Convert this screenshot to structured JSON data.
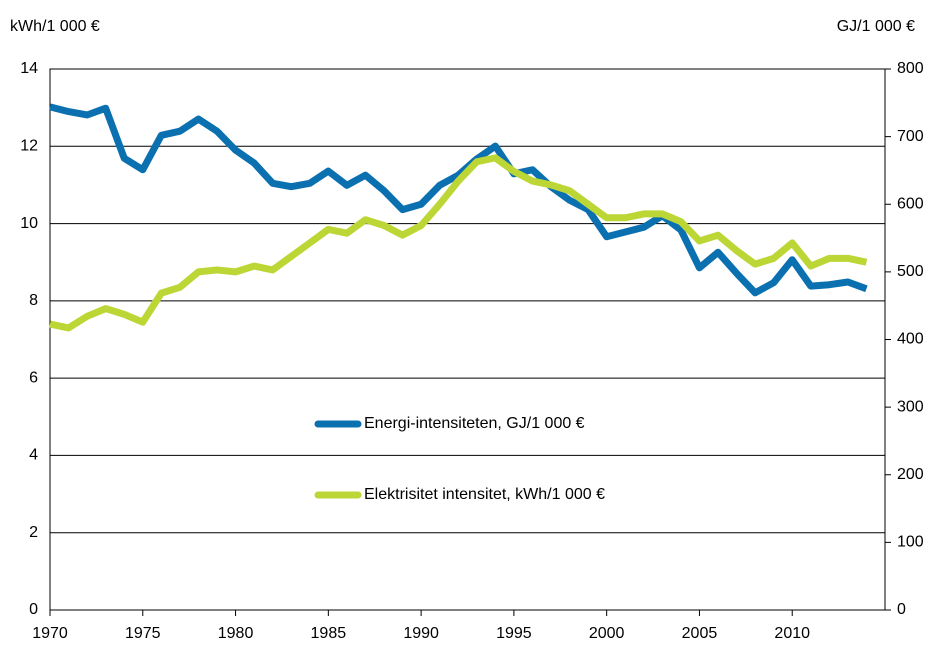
{
  "chart_data": {
    "type": "line",
    "y_label": "kWh/1 000 €",
    "y2_label": "GJ/1 000 €",
    "x": [
      1970,
      1971,
      1972,
      1973,
      1974,
      1975,
      1976,
      1977,
      1978,
      1979,
      1980,
      1981,
      1982,
      1983,
      1984,
      1985,
      1986,
      1987,
      1988,
      1989,
      1990,
      1991,
      1992,
      1993,
      1994,
      1995,
      1996,
      1997,
      1998,
      1999,
      2000,
      2001,
      2002,
      2003,
      2004,
      2005,
      2006,
      2007,
      2008,
      2009,
      2010,
      2011,
      2012,
      2013,
      2014
    ],
    "series": [
      {
        "name": "Energi-intensiteten, GJ/1 000 €",
        "color": "#0a70b0",
        "axis": "y2",
        "values": [
          744,
          737,
          732,
          742,
          668,
          651,
          702,
          708,
          726,
          708,
          680,
          661,
          631,
          626,
          631,
          649,
          628,
          643,
          620,
          592,
          600,
          628,
          643,
          667,
          686,
          645,
          651,
          626,
          606,
          592,
          552,
          559,
          566,
          583,
          562,
          506,
          529,
          498,
          469,
          484,
          518,
          479,
          481,
          485,
          475
        ]
      },
      {
        "name": "Elektrisitet intensitet, kWh/1 000 €",
        "color": "#bcd636",
        "values": [
          7.4,
          7.3,
          7.6,
          7.8,
          7.65,
          7.45,
          8.2,
          8.35,
          8.75,
          8.8,
          8.75,
          8.9,
          8.8,
          9.15,
          9.5,
          9.85,
          9.75,
          10.1,
          9.95,
          9.7,
          9.95,
          10.5,
          11.1,
          11.6,
          11.7,
          11.35,
          11.1,
          11.0,
          10.85,
          10.5,
          10.15,
          10.15,
          10.25,
          10.25,
          10.05,
          9.55,
          9.7,
          9.3,
          8.95,
          9.1,
          9.5,
          8.9,
          9.1,
          9.1,
          9.0
        ]
      }
    ],
    "xlim": [
      1970,
      2015
    ],
    "xticks": [
      1970,
      1975,
      1980,
      1985,
      1990,
      1995,
      2000,
      2005,
      2010
    ],
    "ylim": [
      0,
      14
    ],
    "yticks": [
      0,
      2,
      4,
      6,
      8,
      10,
      12,
      14
    ],
    "y2lim": [
      0,
      800
    ],
    "y2ticks": [
      0,
      100,
      200,
      300,
      400,
      500,
      600,
      700,
      800
    ],
    "grid": true
  }
}
